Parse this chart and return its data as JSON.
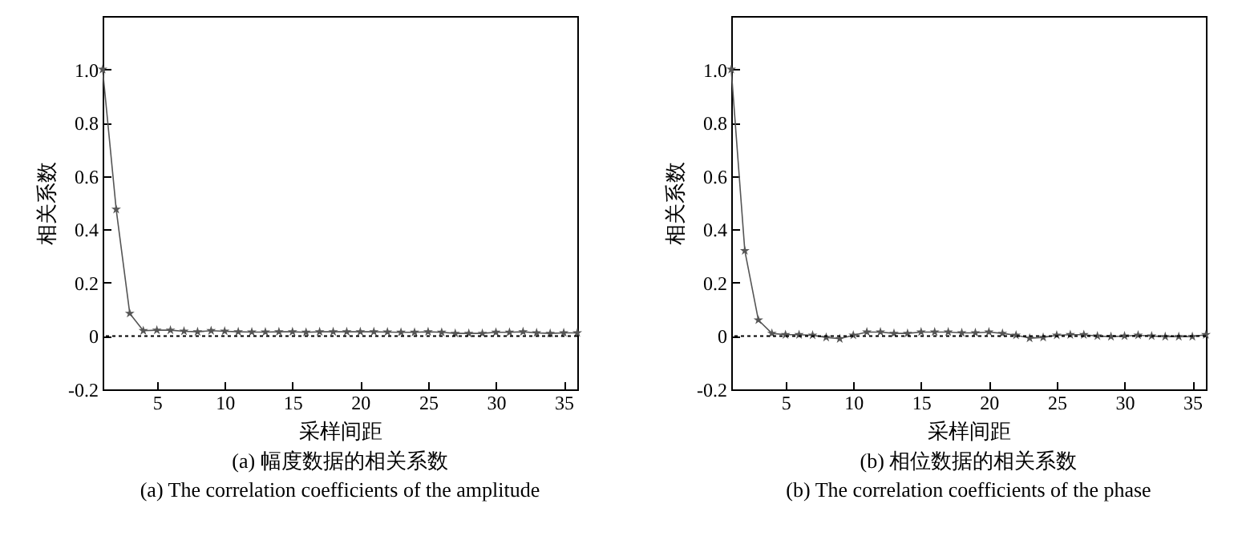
{
  "chart_data": [
    {
      "type": "line",
      "title": "(a) 幅度数据的相关系数",
      "subtitle": "(a) The correlation coefficients of the amplitude",
      "xlabel": "采样间距",
      "ylabel": "相关系数",
      "x": [
        1,
        2,
        3,
        4,
        5,
        6,
        7,
        8,
        9,
        10,
        11,
        12,
        13,
        14,
        15,
        16,
        17,
        18,
        19,
        20,
        21,
        22,
        23,
        24,
        25,
        26,
        27,
        28,
        29,
        30,
        31,
        32,
        33,
        34,
        35,
        36
      ],
      "series": [
        {
          "color": "#555555",
          "values": [
            1.0,
            0.475,
            0.085,
            0.02,
            0.022,
            0.022,
            0.018,
            0.016,
            0.02,
            0.018,
            0.016,
            0.015,
            0.015,
            0.016,
            0.016,
            0.014,
            0.016,
            0.016,
            0.016,
            0.016,
            0.016,
            0.015,
            0.014,
            0.014,
            0.016,
            0.014,
            0.01,
            0.01,
            0.01,
            0.014,
            0.014,
            0.016,
            0.012,
            0.01,
            0.012,
            0.012
          ]
        }
      ],
      "xlim": [
        1,
        36
      ],
      "ylim": [
        -0.2,
        1.2
      ],
      "xticks": [
        5,
        10,
        15,
        20,
        25,
        30,
        35
      ],
      "yticks": [
        {
          "value": -0.2,
          "label": "-0.2"
        },
        {
          "value": 0,
          "label": "0"
        },
        {
          "value": 0.2,
          "label": "0.2"
        },
        {
          "value": 0.4,
          "label": "0.4"
        },
        {
          "value": 0.6,
          "label": "0.6"
        },
        {
          "value": 0.8,
          "label": "0.8"
        },
        {
          "value": 1.0,
          "label": "1.0"
        }
      ],
      "ref_lines": [
        {
          "axis": "y",
          "value": 0,
          "label": null,
          "line_style": "dotted",
          "color": "#000000"
        }
      ],
      "marker": "star",
      "grid": false
    },
    {
      "type": "line",
      "title": "(b) 相位数据的相关系数",
      "subtitle": "(b) The correlation coefficients of the phase",
      "xlabel": "采样间距",
      "ylabel": "相关系数",
      "x": [
        1,
        2,
        3,
        4,
        5,
        6,
        7,
        8,
        9,
        10,
        11,
        12,
        13,
        14,
        15,
        16,
        17,
        18,
        19,
        20,
        21,
        22,
        23,
        24,
        25,
        26,
        27,
        28,
        29,
        30,
        31,
        32,
        33,
        34,
        35,
        36
      ],
      "series": [
        {
          "color": "#555555",
          "values": [
            1.0,
            0.32,
            0.06,
            0.01,
            0.005,
            0.005,
            0.003,
            -0.005,
            -0.01,
            0.003,
            0.015,
            0.015,
            0.01,
            0.01,
            0.015,
            0.015,
            0.015,
            0.012,
            0.012,
            0.015,
            0.01,
            0.003,
            -0.008,
            -0.005,
            0.003,
            0.005,
            0.005,
            0,
            -0.002,
            0,
            0.003,
            0,
            -0.002,
            -0.002,
            -0.002,
            0.005
          ]
        }
      ],
      "xlim": [
        1,
        36
      ],
      "ylim": [
        -0.2,
        1.2
      ],
      "xticks": [
        5,
        10,
        15,
        20,
        25,
        30,
        35
      ],
      "yticks": [
        {
          "value": -0.2,
          "label": "-0.2"
        },
        {
          "value": 0,
          "label": "0"
        },
        {
          "value": 0.2,
          "label": "0.2"
        },
        {
          "value": 0.4,
          "label": "0.4"
        },
        {
          "value": 0.6,
          "label": "0.6"
        },
        {
          "value": 0.8,
          "label": "0.8"
        },
        {
          "value": 1.0,
          "label": "1.0"
        }
      ],
      "ref_lines": [
        {
          "axis": "y",
          "value": 0,
          "label": null,
          "line_style": "dotted",
          "color": "#000000"
        }
      ],
      "marker": "star",
      "grid": false
    }
  ]
}
